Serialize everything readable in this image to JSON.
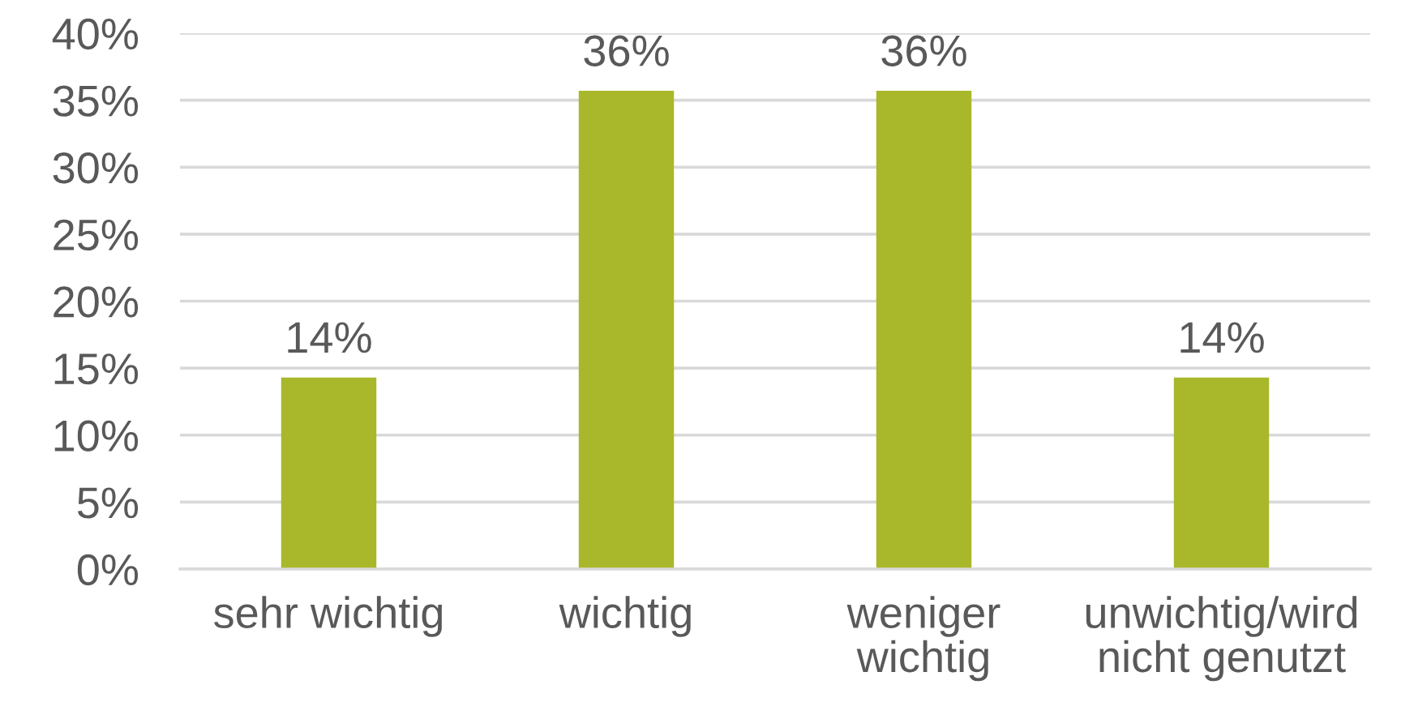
{
  "chart_data": {
    "type": "bar",
    "categories": [
      "sehr wichtig",
      "wichtig",
      "weniger wichtig",
      "unwichtig/wird nicht genutzt"
    ],
    "values": [
      14.3,
      35.7,
      35.7,
      14.3
    ],
    "value_labels": [
      "14%",
      "36%",
      "36%",
      "14%"
    ],
    "color": "#a8b82a",
    "ylim": [
      0,
      40
    ],
    "yticks": [
      {
        "value": 0,
        "label": "0%"
      },
      {
        "value": 5,
        "label": "5%"
      },
      {
        "value": 10,
        "label": "10%"
      },
      {
        "value": 15,
        "label": "15%"
      },
      {
        "value": 20,
        "label": "20%"
      },
      {
        "value": 25,
        "label": "25%"
      },
      {
        "value": 30,
        "label": "30%"
      },
      {
        "value": 35,
        "label": "35%"
      },
      {
        "value": 40,
        "label": "40%"
      }
    ],
    "grid": "y"
  }
}
